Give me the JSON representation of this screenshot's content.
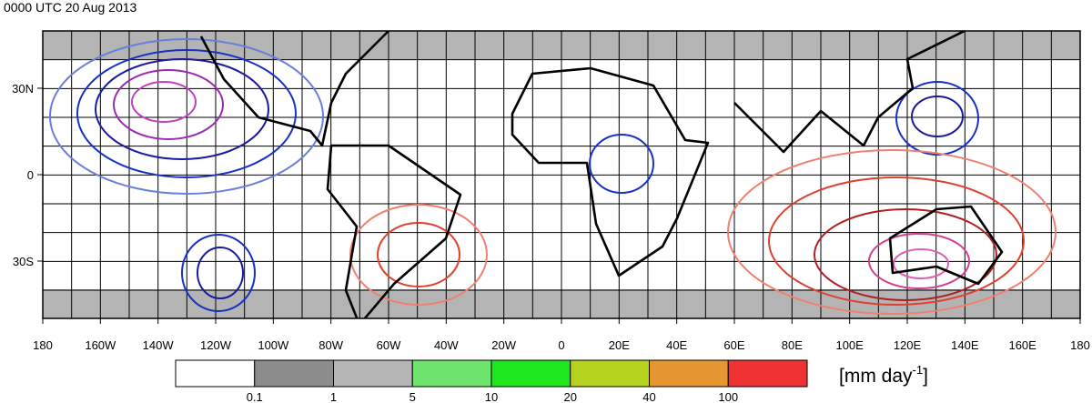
{
  "header": {
    "title": "0000 UTC 20 Aug 2013"
  },
  "map": {
    "lat_labels": [
      "30N",
      "0",
      "30S"
    ],
    "lon_labels": [
      "180",
      "160W",
      "140W",
      "120W",
      "100W",
      "80W",
      "60W",
      "40W",
      "20W",
      "0",
      "20E",
      "40E",
      "60E",
      "80E",
      "100E",
      "120E",
      "140E",
      "160E",
      "180"
    ]
  },
  "colorbar": {
    "labels": [
      "0.1",
      "1",
      "5",
      "10",
      "20",
      "40",
      "100"
    ],
    "unit": {
      "text": "[mm day",
      "superscript": "-1",
      "close": "]"
    }
  }
}
